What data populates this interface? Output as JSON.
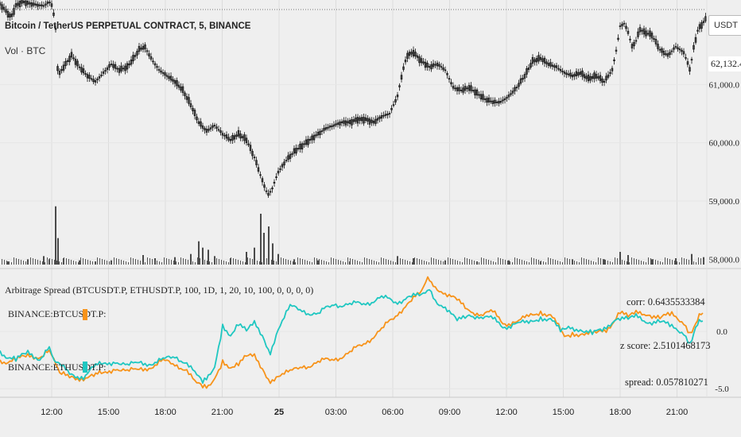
{
  "header": {
    "symbol_title": "Bitcoin / TetherUS PERPETUAL CONTRACT, 5, BINANCE",
    "volume_label": "Vol · BTC",
    "currency_button": "USDT",
    "current_price": "62,132.4"
  },
  "indicator": {
    "title": "Arbitrage Spread (BTCUSDT.P, ETHUSDT.P, 100, 1D, 1, 20, 10, 100, 0, 0, 0, 0)",
    "legend_btc": "BINANCE:BTCUSDT.P:",
    "legend_eth": "BINANCE:ETHUSDT.P:",
    "corr": "corr: 0.6435533384",
    "zscore": "z score: 2.5101468173",
    "spread": "spread: 0.057810271"
  },
  "colors": {
    "btc_series": "#f7931a",
    "eth_series": "#1fc7c1",
    "candle": "#111111",
    "volume": "#222222",
    "grid": "#dcdcdc"
  },
  "chart_data": [
    {
      "type": "line",
      "name_in_chart": "Bitcoin / TetherUS PERPETUAL CONTRACT, 5, BINANCE",
      "y_ticks": [
        "61,000.0",
        "60,000.0",
        "59,000.0",
        "58,000.0"
      ],
      "ylim": [
        57950,
        62450
      ],
      "x_ticks": [
        "12:00",
        "15:00",
        "18:00",
        "21:00",
        "25",
        "03:00",
        "06:00",
        "09:00",
        "12:00",
        "15:00",
        "18:00",
        "21:00"
      ],
      "price_path": [
        [
          0,
          62380
        ],
        [
          5,
          62300
        ],
        [
          14,
          62150
        ],
        [
          20,
          62350
        ],
        [
          28,
          62420
        ],
        [
          40,
          62380
        ],
        [
          55,
          62350
        ],
        [
          62,
          62420
        ],
        [
          66,
          62350
        ],
        [
          70,
          61950
        ],
        [
          73,
          61150
        ],
        [
          80,
          61300
        ],
        [
          90,
          61500
        ],
        [
          100,
          61300
        ],
        [
          110,
          61150
        ],
        [
          120,
          61050
        ],
        [
          130,
          61200
        ],
        [
          140,
          61350
        ],
        [
          150,
          61250
        ],
        [
          160,
          61300
        ],
        [
          168,
          61450
        ],
        [
          175,
          61600
        ],
        [
          182,
          61650
        ],
        [
          190,
          61450
        ],
        [
          200,
          61250
        ],
        [
          210,
          61150
        ],
        [
          220,
          61050
        ],
        [
          230,
          60900
        ],
        [
          240,
          60650
        ],
        [
          250,
          60350
        ],
        [
          260,
          60200
        ],
        [
          270,
          60300
        ],
        [
          280,
          60150
        ],
        [
          290,
          60050
        ],
        [
          300,
          60150
        ],
        [
          310,
          60050
        ],
        [
          320,
          59750
        ],
        [
          330,
          59350
        ],
        [
          337,
          59100
        ],
        [
          342,
          59200
        ],
        [
          350,
          59500
        ],
        [
          360,
          59700
        ],
        [
          370,
          59850
        ],
        [
          380,
          59950
        ],
        [
          390,
          60050
        ],
        [
          400,
          60150
        ],
        [
          410,
          60250
        ],
        [
          420,
          60300
        ],
        [
          430,
          60350
        ],
        [
          440,
          60350
        ],
        [
          450,
          60400
        ],
        [
          460,
          60400
        ],
        [
          470,
          60350
        ],
        [
          480,
          60450
        ],
        [
          490,
          60500
        ],
        [
          500,
          60800
        ],
        [
          506,
          61200
        ],
        [
          512,
          61500
        ],
        [
          520,
          61550
        ],
        [
          530,
          61400
        ],
        [
          540,
          61300
        ],
        [
          550,
          61350
        ],
        [
          560,
          61250
        ],
        [
          570,
          60950
        ],
        [
          580,
          60900
        ],
        [
          590,
          60950
        ],
        [
          600,
          60850
        ],
        [
          610,
          60750
        ],
        [
          620,
          60700
        ],
        [
          630,
          60700
        ],
        [
          640,
          60800
        ],
        [
          650,
          60950
        ],
        [
          660,
          61150
        ],
        [
          670,
          61400
        ],
        [
          680,
          61450
        ],
        [
          690,
          61350
        ],
        [
          700,
          61300
        ],
        [
          710,
          61200
        ],
        [
          720,
          61150
        ],
        [
          730,
          61200
        ],
        [
          740,
          61100
        ],
        [
          750,
          61150
        ],
        [
          760,
          61050
        ],
        [
          770,
          61250
        ],
        [
          776,
          61650
        ],
        [
          780,
          62000
        ],
        [
          785,
          62050
        ],
        [
          790,
          61900
        ],
        [
          795,
          61650
        ],
        [
          800,
          61750
        ],
        [
          805,
          61950
        ],
        [
          810,
          61900
        ],
        [
          820,
          61850
        ],
        [
          830,
          61600
        ],
        [
          840,
          61500
        ],
        [
          850,
          61650
        ],
        [
          860,
          61550
        ],
        [
          868,
          61250
        ],
        [
          872,
          61600
        ],
        [
          878,
          61950
        ],
        [
          884,
          62050
        ],
        [
          889,
          62150
        ]
      ],
      "volume_bars": [
        [
          10,
          3
        ],
        [
          35,
          5
        ],
        [
          55,
          8
        ],
        [
          62,
          5
        ],
        [
          70,
          55
        ],
        [
          73,
          25
        ],
        [
          80,
          6
        ],
        [
          100,
          4
        ],
        [
          120,
          3
        ],
        [
          140,
          4
        ],
        [
          180,
          9
        ],
        [
          195,
          6
        ],
        [
          220,
          7
        ],
        [
          240,
          10
        ],
        [
          250,
          22
        ],
        [
          255,
          16
        ],
        [
          262,
          14
        ],
        [
          270,
          8
        ],
        [
          290,
          6
        ],
        [
          310,
          12
        ],
        [
          320,
          16
        ],
        [
          328,
          48
        ],
        [
          332,
          30
        ],
        [
          338,
          36
        ],
        [
          343,
          20
        ],
        [
          350,
          10
        ],
        [
          370,
          5
        ],
        [
          400,
          4
        ],
        [
          440,
          3
        ],
        [
          500,
          8
        ],
        [
          520,
          6
        ],
        [
          560,
          4
        ],
        [
          600,
          3
        ],
        [
          640,
          4
        ],
        [
          680,
          3
        ],
        [
          720,
          5
        ],
        [
          760,
          5
        ],
        [
          780,
          12
        ],
        [
          790,
          9
        ],
        [
          820,
          5
        ],
        [
          850,
          6
        ],
        [
          870,
          10
        ],
        [
          885,
          7
        ]
      ]
    },
    {
      "type": "line",
      "title": "Arbitrage Spread (BTCUSDT.P, ETHUSDT.P, 100, 1D, 1, 20, 10, 100, 0, 0, 0, 0)",
      "y_ticks": [
        "0.0",
        "-5.0"
      ],
      "ylim": [
        -5.4,
        5.0
      ],
      "series": [
        {
          "name": "BINANCE:BTCUSDT.P:",
          "color": "#f7931a",
          "points": [
            [
              0,
              -2.6
            ],
            [
              20,
              -2.5
            ],
            [
              35,
              -2.2
            ],
            [
              50,
              -2.1
            ],
            [
              62,
              -1.9
            ],
            [
              68,
              -2.3
            ],
            [
              75,
              -3.8
            ],
            [
              90,
              -4.0
            ],
            [
              105,
              -4.0
            ],
            [
              118,
              -3.7
            ],
            [
              130,
              -3.8
            ],
            [
              145,
              -3.1
            ],
            [
              160,
              -3.5
            ],
            [
              175,
              -3.4
            ],
            [
              190,
              -3.0
            ],
            [
              205,
              -2.6
            ],
            [
              220,
              -3.0
            ],
            [
              235,
              -3.2
            ],
            [
              245,
              -4.3
            ],
            [
              255,
              -5.0
            ],
            [
              262,
              -4.9
            ],
            [
              270,
              -4.3
            ],
            [
              280,
              -2.6
            ],
            [
              290,
              -3.0
            ],
            [
              300,
              -2.7
            ],
            [
              310,
              -2.2
            ],
            [
              320,
              -2.3
            ],
            [
              330,
              -3.4
            ],
            [
              340,
              -4.3
            ],
            [
              350,
              -3.7
            ],
            [
              365,
              -3.6
            ],
            [
              380,
              -3.1
            ],
            [
              400,
              -2.7
            ],
            [
              420,
              -2.4
            ],
            [
              440,
              -1.9
            ],
            [
              460,
              -0.9
            ],
            [
              480,
              0.1
            ],
            [
              500,
              1.6
            ],
            [
              515,
              2.6
            ],
            [
              530,
              3.3
            ],
            [
              538,
              4.5
            ],
            [
              545,
              4.0
            ],
            [
              560,
              3.4
            ],
            [
              575,
              2.6
            ],
            [
              590,
              1.9
            ],
            [
              605,
              1.5
            ],
            [
              620,
              1.6
            ],
            [
              635,
              0.7
            ],
            [
              650,
              0.9
            ],
            [
              665,
              1.2
            ],
            [
              680,
              1.8
            ],
            [
              695,
              1.3
            ],
            [
              710,
              -0.6
            ],
            [
              720,
              -0.2
            ],
            [
              735,
              -0.1
            ],
            [
              750,
              -0.3
            ],
            [
              765,
              0.3
            ],
            [
              780,
              1.8
            ],
            [
              790,
              1.2
            ],
            [
              800,
              1.5
            ],
            [
              815,
              1.6
            ],
            [
              830,
              1.2
            ],
            [
              845,
              1.4
            ],
            [
              860,
              0.9
            ],
            [
              868,
              -0.1
            ],
            [
              875,
              0.8
            ],
            [
              884,
              1.6
            ]
          ]
        },
        {
          "name": "BINANCE:ETHUSDT.P:",
          "color": "#1fc7c1",
          "points": [
            [
              0,
              -1.8
            ],
            [
              20,
              -2.5
            ],
            [
              35,
              -1.9
            ],
            [
              50,
              -2.3
            ],
            [
              62,
              -1.6
            ],
            [
              68,
              -2.4
            ],
            [
              75,
              -3.0
            ],
            [
              90,
              -3.8
            ],
            [
              105,
              -3.9
            ],
            [
              118,
              -2.9
            ],
            [
              130,
              -3.0
            ],
            [
              145,
              -2.5
            ],
            [
              160,
              -3.0
            ],
            [
              175,
              -2.8
            ],
            [
              190,
              -2.7
            ],
            [
              205,
              -2.5
            ],
            [
              220,
              -2.3
            ],
            [
              235,
              -2.6
            ],
            [
              245,
              -3.5
            ],
            [
              255,
              -4.6
            ],
            [
              262,
              -4.0
            ],
            [
              270,
              -3.3
            ],
            [
              280,
              0.5
            ],
            [
              290,
              -0.2
            ],
            [
              300,
              0.8
            ],
            [
              310,
              0.0
            ],
            [
              320,
              0.6
            ],
            [
              330,
              -0.5
            ],
            [
              340,
              -1.8
            ],
            [
              350,
              0.4
            ],
            [
              365,
              2.1
            ],
            [
              380,
              1.8
            ],
            [
              400,
              1.5
            ],
            [
              420,
              2.4
            ],
            [
              440,
              2.3
            ],
            [
              460,
              2.5
            ],
            [
              480,
              2.9
            ],
            [
              500,
              2.6
            ],
            [
              515,
              3.1
            ],
            [
              530,
              3.0
            ],
            [
              540,
              3.7
            ],
            [
              550,
              2.6
            ],
            [
              560,
              2.2
            ],
            [
              575,
              0.8
            ],
            [
              590,
              1.5
            ],
            [
              605,
              1.3
            ],
            [
              620,
              1.0
            ],
            [
              635,
              0.4
            ],
            [
              650,
              0.8
            ],
            [
              665,
              0.6
            ],
            [
              680,
              1.3
            ],
            [
              695,
              1.0
            ],
            [
              705,
              -0.1
            ],
            [
              715,
              0.2
            ],
            [
              730,
              0.3
            ],
            [
              745,
              -0.2
            ],
            [
              760,
              0.1
            ],
            [
              775,
              1.3
            ],
            [
              790,
              1.0
            ],
            [
              800,
              1.2
            ],
            [
              815,
              0.9
            ],
            [
              830,
              0.9
            ],
            [
              845,
              0.3
            ],
            [
              860,
              0.0
            ],
            [
              868,
              -1.0
            ],
            [
              875,
              0.5
            ],
            [
              884,
              0.9
            ]
          ]
        }
      ]
    }
  ]
}
